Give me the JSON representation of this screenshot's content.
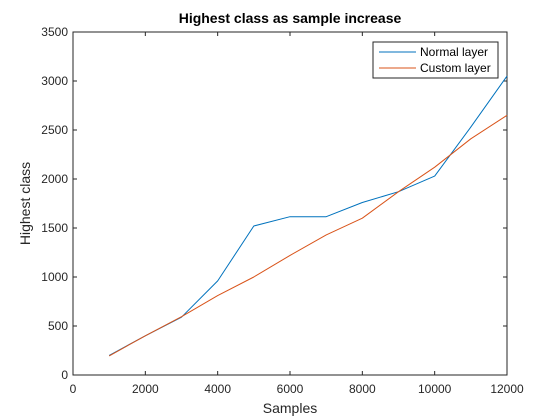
{
  "chart_data": {
    "type": "line",
    "title": "Highest class as sample increase",
    "xlabel": "Samples",
    "ylabel": "Highest class",
    "xlim": [
      0,
      12000
    ],
    "ylim": [
      0,
      3500
    ],
    "xticks": [
      0,
      2000,
      4000,
      6000,
      8000,
      10000,
      12000
    ],
    "yticks": [
      0,
      500,
      1000,
      1500,
      2000,
      2500,
      3000,
      3500
    ],
    "grid": false,
    "legend_position": "top-right",
    "series": [
      {
        "name": "Normal layer",
        "color": "#0072BD",
        "x": [
          1000,
          2000,
          3000,
          4000,
          5000,
          6000,
          7000,
          8000,
          9000,
          10000,
          11000,
          12000
        ],
        "y": [
          200,
          400,
          590,
          960,
          1520,
          1615,
          1615,
          1760,
          1870,
          2030,
          2530,
          3050
        ]
      },
      {
        "name": "Custom layer",
        "color": "#D95319",
        "x": [
          1000,
          2000,
          3000,
          4000,
          5000,
          6000,
          7000,
          8000,
          9000,
          10000,
          11000,
          12000
        ],
        "y": [
          195,
          400,
          595,
          810,
          1000,
          1220,
          1430,
          1600,
          1870,
          2120,
          2410,
          2650
        ]
      }
    ]
  }
}
